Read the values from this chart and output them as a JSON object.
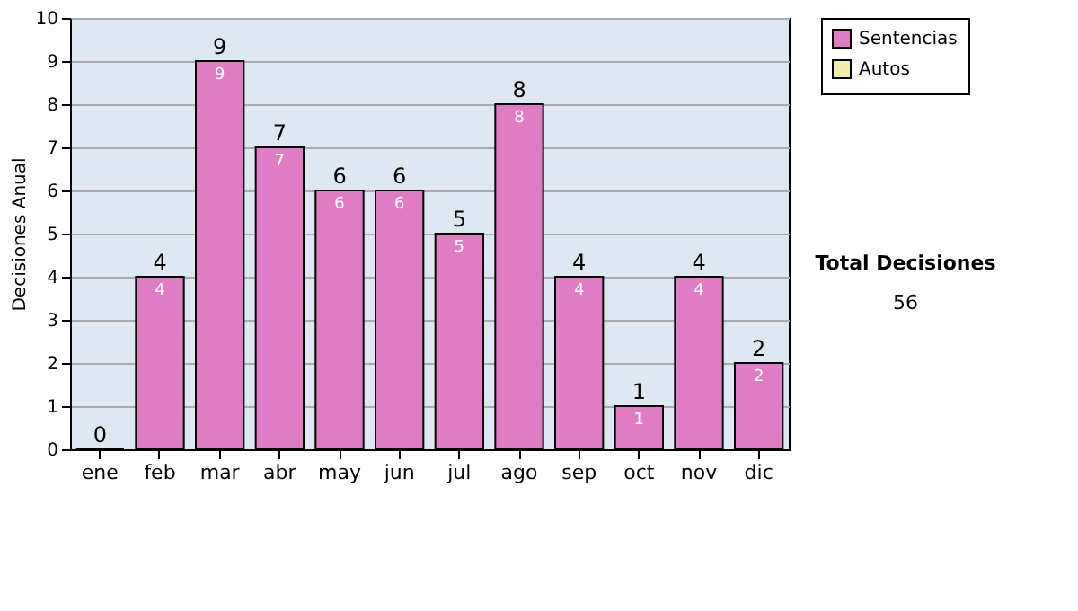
{
  "chart_data": {
    "type": "bar",
    "ylabel": "Decisiones Anual",
    "categories": [
      "ene",
      "feb",
      "mar",
      "abr",
      "may",
      "jun",
      "jul",
      "ago",
      "sep",
      "oct",
      "nov",
      "dic"
    ],
    "series": [
      {
        "name": "Sentencias",
        "color": "#e07cc4",
        "values": [
          0,
          4,
          9,
          7,
          6,
          6,
          5,
          8,
          4,
          1,
          4,
          2
        ],
        "value_labels": [
          null,
          "4",
          "9",
          "7",
          "6",
          "6",
          "5",
          "8",
          "4",
          "1",
          "4",
          "2"
        ]
      },
      {
        "name": "Autos",
        "color": "#eeeeaa",
        "values": [
          null,
          null,
          null,
          null,
          null,
          null,
          null,
          null,
          null,
          null,
          null,
          null
        ]
      }
    ],
    "stacked": true,
    "totals": [
      "0",
      "4",
      "9",
      "7",
      "6",
      "6",
      "5",
      "8",
      "4",
      "1",
      "4",
      "2"
    ],
    "ylim": [
      0,
      10
    ],
    "yticks": [
      0,
      1,
      2,
      3,
      4,
      5,
      6,
      7,
      8,
      9,
      10
    ],
    "grid": "y",
    "legend": "right",
    "annotations": [
      "Total Decisiones",
      "56"
    ]
  }
}
